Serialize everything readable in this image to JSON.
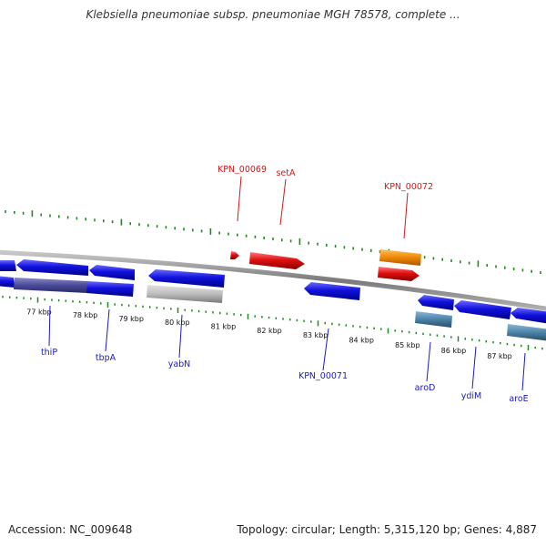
{
  "title": "Klebsiella pneumoniae subsp. pneumoniae MGH 78578, complete ...",
  "footer": {
    "accession": "Accession: NC_009648",
    "summary": "Topology: circular; Length: 5,315,120 bp; Genes: 4,887"
  },
  "colors": {
    "forward_gene": "#cc1111",
    "reverse_gene": "#1111dd",
    "highlight_gene": "#ee8800",
    "muted_gene": "#b8b8b8",
    "steel_gene": "#4a82a6",
    "backbone": "#888888",
    "tick": "#1e8a1e",
    "label_blue": "#1a1acc",
    "label_red": "#cc1a1a"
  },
  "scale": {
    "unit": "kbp",
    "major_ticks_kbp": [
      77,
      78,
      79,
      80,
      81,
      82,
      83,
      84,
      85,
      86,
      87
    ]
  },
  "gene_labels": {
    "top": [
      "KPN_00069",
      "setA",
      "KPN_00072"
    ],
    "bottom": [
      "thiP",
      "tbpA",
      "yabN",
      "KPN_00071",
      "aroD",
      "ydiM",
      "aroE"
    ]
  }
}
